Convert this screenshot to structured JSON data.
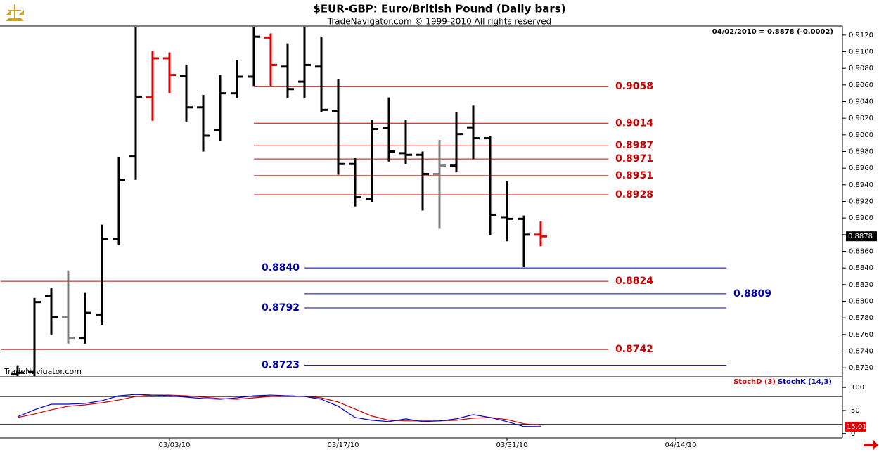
{
  "chart_data": [
    {
      "type": "ohlc",
      "title": "$EUR-GBP:  Euro/British Pound  (Daily bars)",
      "subtitle": "TradeNavigator.com © 1999-2010 All rights reserved",
      "info": "04/02/2010 = 0.8878 (-0.0002)",
      "watermark": "TradeNavigator.com",
      "open": [
        0.8712,
        0.8715,
        0.8806,
        0.8781,
        0.8756,
        0.8784,
        0.8875,
        0.8974,
        0.9045,
        0.9092,
        0.9071,
        0.9033,
        0.9006,
        0.905,
        0.907,
        0.9117,
        0.9082,
        0.9064,
        0.9082,
        0.9029,
        0.8965,
        0.8923,
        0.9008,
        0.8978,
        0.8976,
        0.8953,
        0.8963,
        0.9009,
        0.8996,
        0.8901,
        0.8899,
        0.888,
        null,
        null,
        null,
        null,
        null,
        null,
        null,
        null
      ],
      "high": [
        0.8723,
        0.8804,
        0.8816,
        0.8837,
        0.881,
        0.8892,
        0.8973,
        0.913,
        0.9101,
        0.9099,
        0.9084,
        0.9048,
        0.9072,
        0.909,
        0.913,
        0.9122,
        0.911,
        0.913,
        0.9118,
        0.9067,
        0.8972,
        0.9018,
        0.9045,
        0.9018,
        0.898,
        0.8994,
        0.9027,
        0.9035,
        0.8999,
        0.8944,
        0.8903,
        0.8896,
        null,
        null,
        null,
        null,
        null,
        null,
        null,
        null
      ],
      "low": [
        0.871,
        0.871,
        0.876,
        0.8749,
        0.8749,
        0.8771,
        0.8868,
        0.8946,
        0.9017,
        0.905,
        0.9016,
        0.898,
        0.8993,
        0.9044,
        0.9058,
        0.9059,
        0.9044,
        0.9044,
        0.9027,
        0.8952,
        0.8914,
        0.8919,
        0.8968,
        0.8965,
        0.8909,
        0.8887,
        0.8955,
        0.8971,
        0.8879,
        0.8872,
        0.8841,
        0.8866,
        null,
        null,
        null,
        null,
        null,
        null,
        null,
        null
      ],
      "close": [
        0.8714,
        0.8799,
        0.8781,
        0.8756,
        0.8786,
        0.8875,
        0.8946,
        0.9046,
        0.9092,
        0.9072,
        0.9033,
        0.8999,
        0.905,
        0.907,
        0.9118,
        0.9084,
        0.9055,
        0.9084,
        0.903,
        0.8965,
        0.8925,
        0.9007,
        0.898,
        0.8976,
        0.8953,
        0.8963,
        0.9001,
        0.8996,
        0.8904,
        0.8899,
        0.888,
        0.8878,
        null,
        null,
        null,
        null,
        null,
        null,
        null,
        null
      ],
      "colors": [
        "#000000",
        "#000000",
        "#000000",
        "#808080",
        "#000000",
        "#000000",
        "#000000",
        "#000000",
        "#e00000",
        "#e00000",
        "#000000",
        "#000000",
        "#000000",
        "#000000",
        "#000000",
        "#e00000",
        "#000000",
        "#000000",
        "#000000",
        "#000000",
        "#000000",
        "#000000",
        "#000000",
        "#000000",
        "#000000",
        "#808080",
        "#000000",
        "#000000",
        "#000000",
        "#000000",
        "#000000",
        "#e00000",
        null,
        null,
        null,
        null,
        null,
        null,
        null,
        null
      ],
      "ylim": [
        0.871,
        0.913
      ],
      "yticks": [
        {
          "value": 0.872,
          "label": "0.8720"
        },
        {
          "value": 0.874,
          "label": "0.8740"
        },
        {
          "value": 0.876,
          "label": "0.8760"
        },
        {
          "value": 0.878,
          "label": "0.8780"
        },
        {
          "value": 0.88,
          "label": "0.8800"
        },
        {
          "value": 0.882,
          "label": "0.8820"
        },
        {
          "value": 0.884,
          "label": "0.8840"
        },
        {
          "value": 0.886,
          "label": "0.8860"
        },
        {
          "value": 0.888,
          "label": "0.8880"
        },
        {
          "value": 0.89,
          "label": "0.8900"
        },
        {
          "value": 0.892,
          "label": "0.8920"
        },
        {
          "value": 0.894,
          "label": "0.8940"
        },
        {
          "value": 0.896,
          "label": "0.8960"
        },
        {
          "value": 0.898,
          "label": "0.8980"
        },
        {
          "value": 0.9,
          "label": "0.9000"
        },
        {
          "value": 0.902,
          "label": "0.9020"
        },
        {
          "value": 0.904,
          "label": "0.9040"
        },
        {
          "value": 0.906,
          "label": "0.9060"
        },
        {
          "value": 0.908,
          "label": "0.9080"
        },
        {
          "value": 0.91,
          "label": "0.9100"
        },
        {
          "value": 0.912,
          "label": "0.9120"
        }
      ],
      "last_price": 0.8878,
      "levels": [
        {
          "value": 0.9058,
          "color": "#cc0000",
          "start": 14,
          "end": 35,
          "label_side": "right"
        },
        {
          "value": 0.9014,
          "color": "#cc0000",
          "start": 14,
          "end": 35,
          "label_side": "right"
        },
        {
          "value": 0.8987,
          "color": "#cc0000",
          "start": 14,
          "end": 35,
          "label_side": "right"
        },
        {
          "value": 0.8971,
          "color": "#cc0000",
          "start": 14,
          "end": 35,
          "label_side": "right"
        },
        {
          "value": 0.8951,
          "color": "#cc0000",
          "start": 14,
          "end": 35,
          "label_side": "right"
        },
        {
          "value": 0.8928,
          "color": "#cc0000",
          "start": 14,
          "end": 35,
          "label_side": "right"
        },
        {
          "value": 0.884,
          "label": "0.8840",
          "color": "#0000aa",
          "start": 17,
          "end": 42,
          "label_side": "left"
        },
        {
          "value": 0.8824,
          "color": "#cc0000",
          "start": -1,
          "end": 35,
          "label_side": "right"
        },
        {
          "value": 0.8809,
          "color": "#0000aa",
          "start": 17,
          "end": 42,
          "label_side": "right"
        },
        {
          "value": 0.8792,
          "color": "#0000aa",
          "start": 17,
          "end": 42,
          "label_side": "left"
        },
        {
          "value": 0.8742,
          "color": "#cc0000",
          "start": -1,
          "end": 35,
          "label_side": "right"
        },
        {
          "value": 0.8723,
          "color": "#0000aa",
          "start": 17,
          "end": 42,
          "label_side": "left"
        }
      ]
    },
    {
      "type": "line",
      "categories": [
        null,
        null,
        null,
        null,
        null,
        null,
        null,
        null,
        null,
        "03/03/10",
        null,
        null,
        null,
        null,
        null,
        null,
        null,
        null,
        null,
        "03/17/10",
        null,
        null,
        null,
        null,
        null,
        null,
        null,
        null,
        null,
        "03/31/10",
        null,
        null,
        null,
        null,
        null,
        null,
        null,
        null,
        null,
        "04/14/10"
      ],
      "series": [
        {
          "name": "StochD (3)",
          "color": "#cc0000",
          "values": [
            34.8,
            42.4,
            51.5,
            59.1,
            62.1,
            66.7,
            72.7,
            80.3,
            83.3,
            83.3,
            81.8,
            78.8,
            75.8,
            74.2,
            77.3,
            80.3,
            81.8,
            80.3,
            77.3,
            68.2,
            53.0,
            37.9,
            28.8,
            27.3,
            27.3,
            27.3,
            28.8,
            33.3,
            34.8,
            30.3,
            21.2,
            18.2,
            null,
            null,
            null,
            null,
            null,
            null,
            null,
            null
          ]
        },
        {
          "name": "StochK (14,3)",
          "color": "#0000cc",
          "values": [
            36.4,
            51.5,
            63.6,
            63.6,
            65.2,
            71.2,
            81.8,
            84.8,
            83.3,
            81.8,
            78.8,
            75.8,
            74.2,
            77.3,
            81.8,
            83.3,
            81.8,
            80.3,
            74.2,
            59.1,
            34.8,
            28.8,
            25.8,
            31.8,
            25.8,
            27.3,
            31.8,
            40.9,
            34.8,
            25.8,
            15.2,
            15.0,
            null,
            null,
            null,
            null,
            null,
            null,
            null,
            null
          ]
        }
      ],
      "ylim": [
        -8,
        120
      ],
      "yticks": [
        0,
        50,
        100
      ],
      "levels": [
        20,
        80
      ],
      "last_value": 15.01
    }
  ]
}
